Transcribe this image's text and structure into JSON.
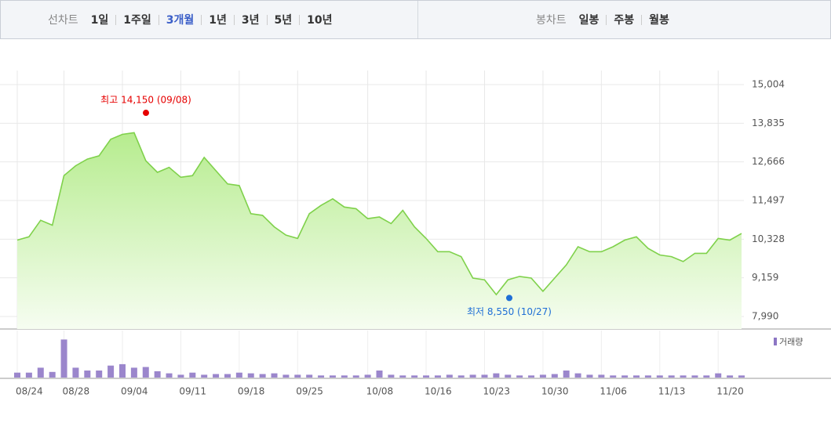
{
  "toolbar": {
    "line_chart_label": "선차트",
    "periods": [
      "1일",
      "1주일",
      "3개월",
      "1년",
      "3년",
      "5년",
      "10년"
    ],
    "active_period": 2,
    "candle_chart_label": "봉차트",
    "candle_types": [
      "일봉",
      "주봉",
      "월봉"
    ]
  },
  "chart_data": {
    "type": "line",
    "color": "#7fd14b",
    "categories": [
      "08/24",
      null,
      null,
      null,
      "08/28",
      null,
      null,
      null,
      null,
      "09/04",
      null,
      null,
      null,
      null,
      "09/11",
      null,
      null,
      null,
      null,
      "09/18",
      null,
      null,
      null,
      null,
      "09/25",
      null,
      null,
      null,
      null,
      null,
      "10/08",
      null,
      null,
      null,
      null,
      "10/16",
      null,
      null,
      null,
      null,
      "10/23",
      null,
      null,
      null,
      null,
      "10/30",
      null,
      null,
      null,
      null,
      "11/06",
      null,
      null,
      null,
      null,
      "11/13",
      null,
      null,
      null,
      null,
      "11/20",
      null,
      null
    ],
    "values": [
      10300,
      10400,
      10900,
      10750,
      12250,
      12550,
      12750,
      12850,
      13350,
      13500,
      13550,
      12700,
      12350,
      12500,
      12200,
      12250,
      12800,
      12400,
      12000,
      11950,
      11100,
      11050,
      10700,
      10450,
      10350,
      11100,
      11350,
      11550,
      11300,
      11250,
      10950,
      11000,
      10800,
      11200,
      10700,
      10350,
      9950,
      9950,
      9800,
      9150,
      9100,
      8650,
      9100,
      9200,
      9150,
      8750,
      9150,
      9550,
      10100,
      9950,
      9950,
      10100,
      10300,
      10400,
      10050,
      9850,
      9800,
      9650,
      9900,
      9900,
      10350,
      10300,
      10500
    ],
    "ylim": [
      7990,
      15004
    ],
    "yticks": [
      {
        "value": 15004,
        "label": "15,004"
      },
      {
        "value": 13835,
        "label": "13,835"
      },
      {
        "value": 12666,
        "label": "12,666"
      },
      {
        "value": 11497,
        "label": "11,497"
      },
      {
        "value": 10328,
        "label": "10,328"
      },
      {
        "value": 9159,
        "label": "9,159"
      },
      {
        "value": 7990,
        "label": "7,990"
      }
    ],
    "grid": true,
    "high": {
      "label": "최고 14,150 (09/08)",
      "value": 14150,
      "color": "#e60000"
    },
    "low": {
      "label": "최저 8,550 (10/27)",
      "value": 8550,
      "color": "#1f6fd6"
    },
    "volume": {
      "name": "거래량",
      "color": "#9b86cc",
      "y2lim": [
        0,
        60
      ],
      "values": [
        7,
        7,
        14,
        8,
        54,
        14,
        10,
        10,
        17,
        19,
        14,
        15,
        9,
        6,
        4,
        7,
        4,
        5,
        5,
        7,
        6,
        5,
        6,
        4,
        4,
        4,
        3,
        3,
        3,
        3,
        4,
        10,
        4,
        3,
        3,
        3,
        3,
        4,
        3,
        4,
        4,
        6,
        4,
        3,
        3,
        4,
        5,
        10,
        6,
        4,
        4,
        3,
        3,
        3,
        3,
        3,
        3,
        3,
        3,
        3,
        6,
        3,
        3
      ]
    }
  }
}
